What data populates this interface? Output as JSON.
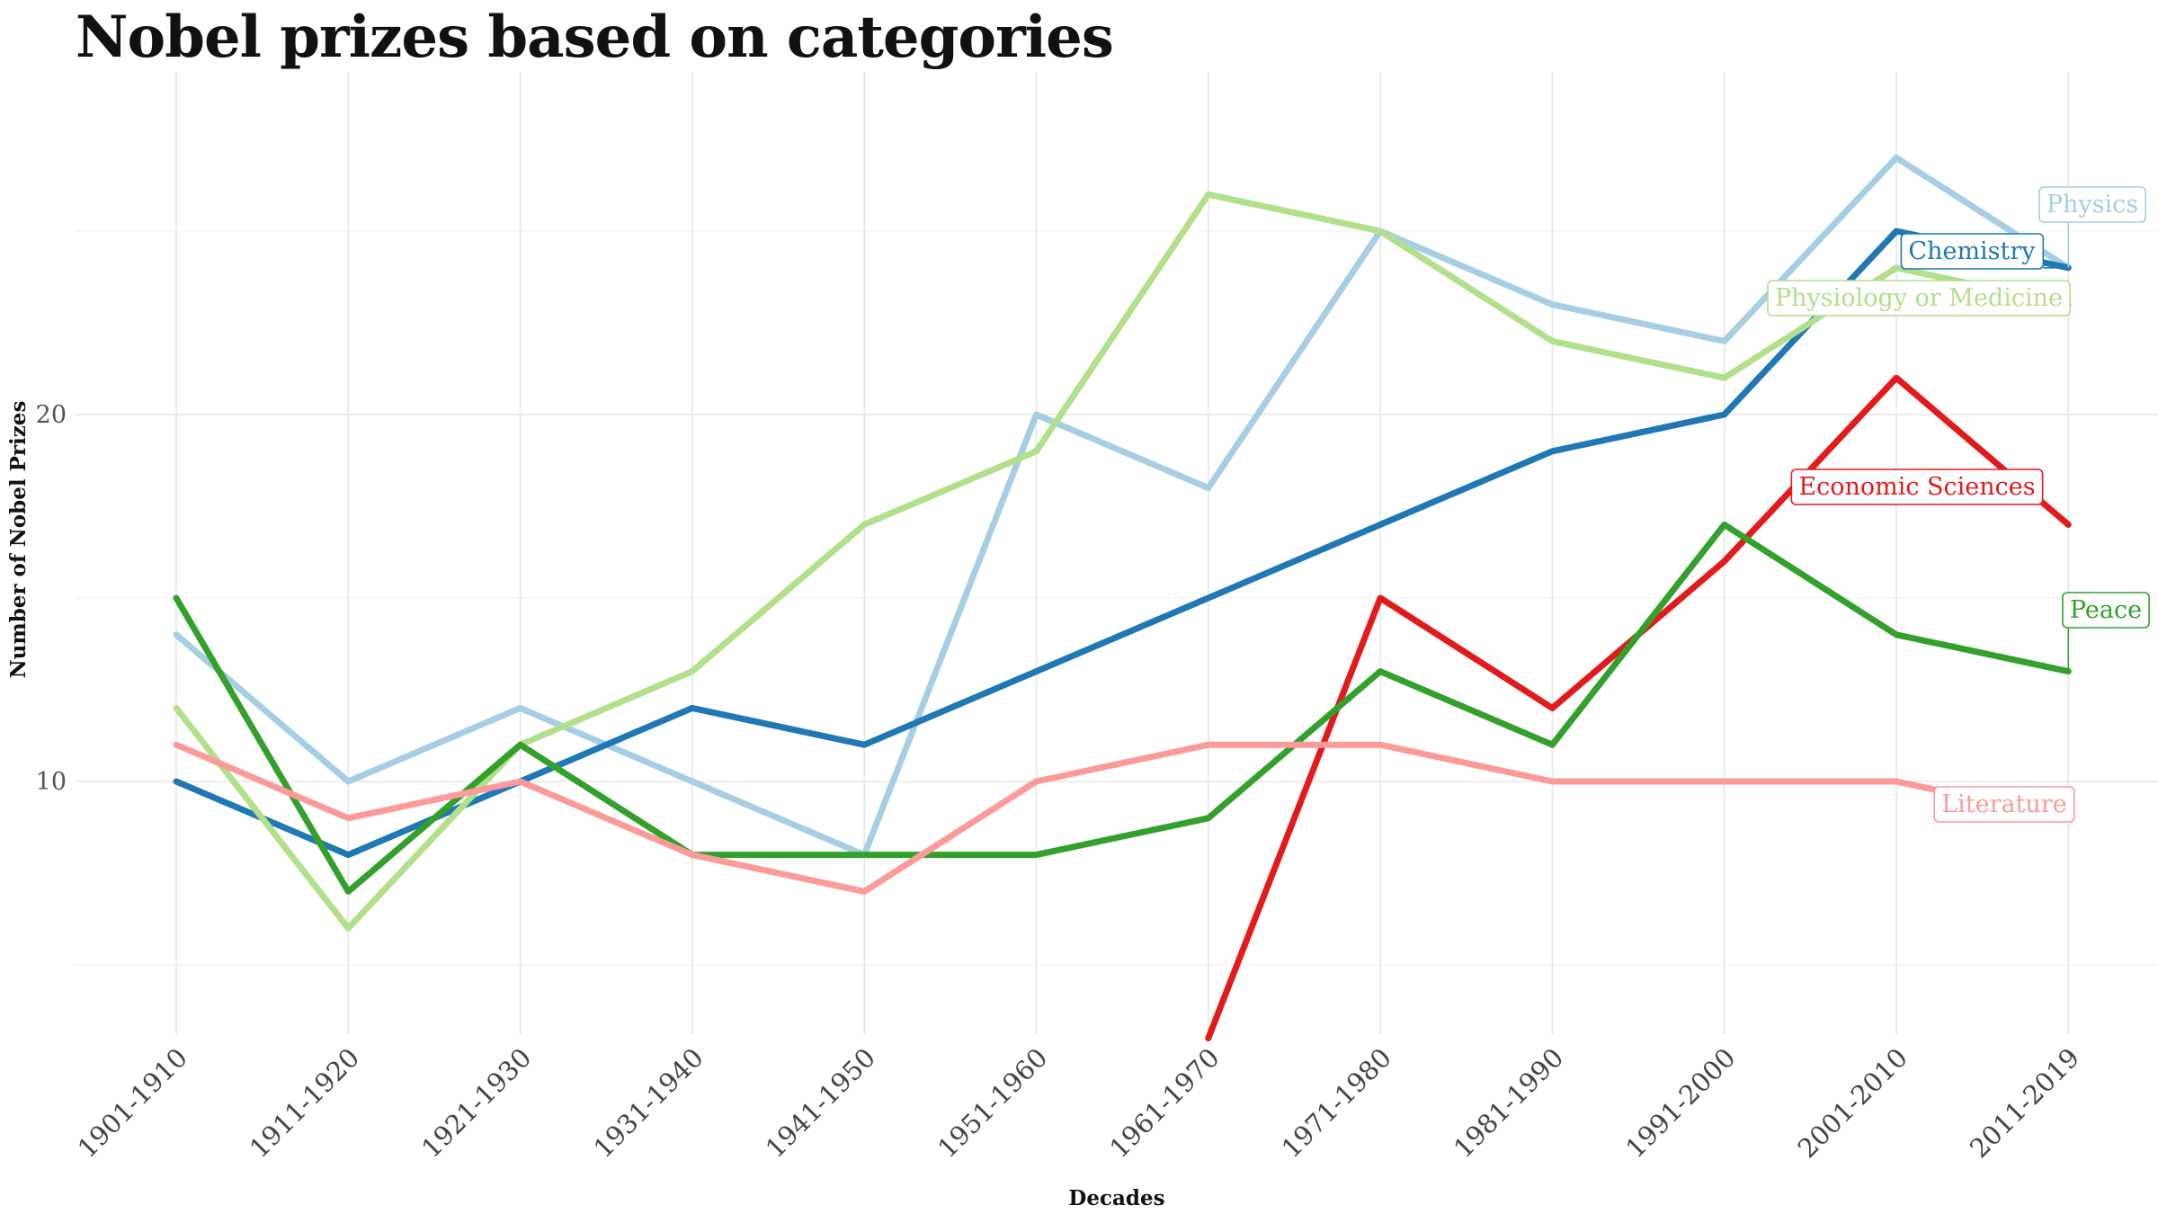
{
  "chart_data": {
    "type": "line",
    "title": "Nobel prizes based on categories",
    "xlabel": "Decades",
    "ylabel": "Number of Nobel Prizes",
    "ylim": [
      2.5,
      27.5
    ],
    "yticks": [
      10,
      20
    ],
    "grid": true,
    "legend": "direct labels at line ends",
    "categories": [
      "1901-1910",
      "1911-1920",
      "1921-1930",
      "1931-1940",
      "1941-1950",
      "1951-1960",
      "1961-1970",
      "1971-1980",
      "1981-1990",
      "1991-2000",
      "2001-2010",
      "2011-2019"
    ],
    "series": [
      {
        "name": "Physics",
        "color": "#a6cee3",
        "values": [
          14,
          10,
          12,
          10,
          8,
          20,
          18,
          25,
          23,
          22,
          27,
          24
        ]
      },
      {
        "name": "Chemistry",
        "color": "#1f78b4",
        "values": [
          10,
          8,
          10,
          12,
          11,
          13,
          15,
          17,
          19,
          20,
          25,
          24
        ]
      },
      {
        "name": "Physiology or Medicine",
        "color": "#b2df8a",
        "values": [
          12,
          6,
          11,
          13,
          17,
          19,
          26,
          25,
          22,
          21,
          24,
          23
        ]
      },
      {
        "name": "Economic Sciences",
        "color": "#e31a1c",
        "values": [
          null,
          null,
          null,
          null,
          null,
          null,
          3,
          15,
          12,
          16,
          21,
          17
        ]
      },
      {
        "name": "Peace",
        "color": "#33a02c",
        "values": [
          15,
          7,
          11,
          8,
          8,
          8,
          9,
          13,
          11,
          17,
          14,
          13
        ]
      },
      {
        "name": "Literature",
        "color": "#fb9a99",
        "values": [
          11,
          9,
          10,
          8,
          7,
          10,
          11,
          11,
          10,
          10,
          10,
          9
        ]
      }
    ]
  }
}
